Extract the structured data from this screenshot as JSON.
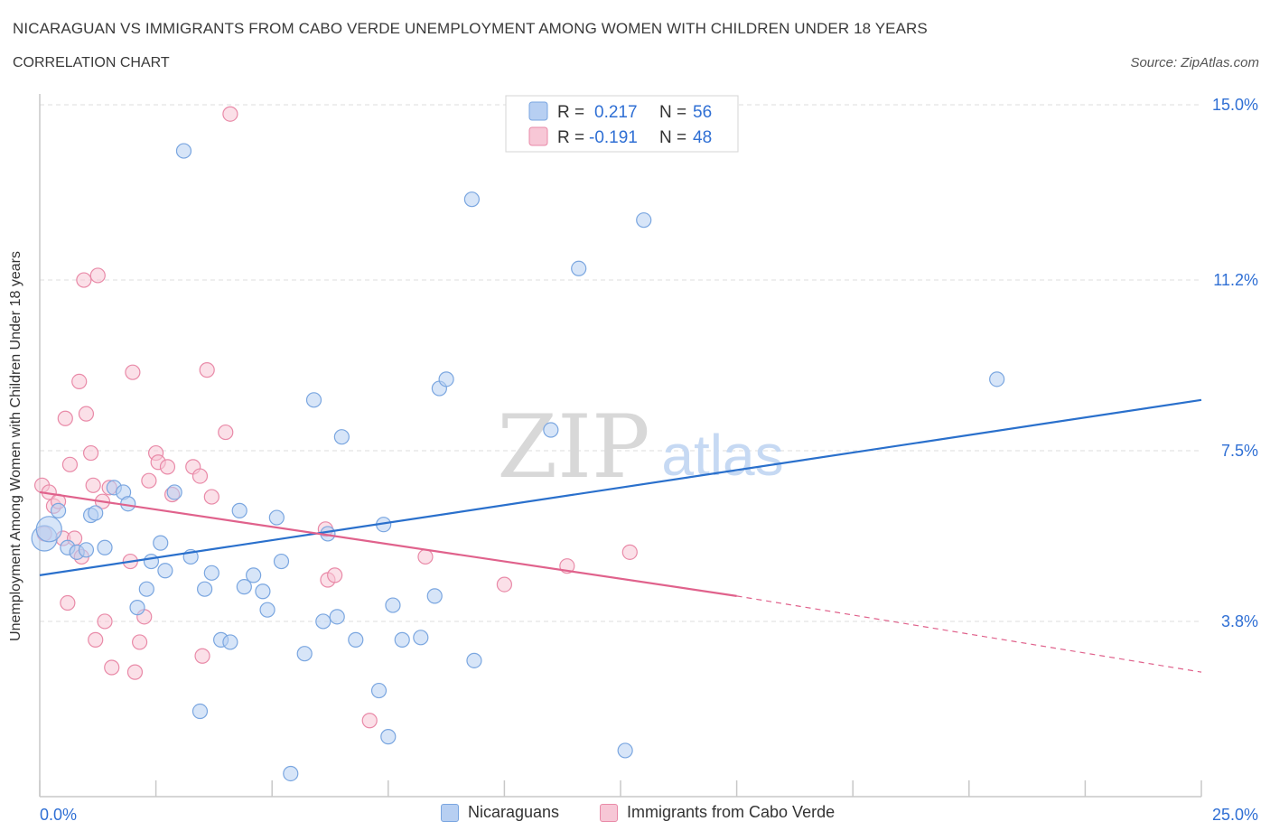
{
  "header": {
    "title": "NICARAGUAN VS IMMIGRANTS FROM CABO VERDE UNEMPLOYMENT AMONG WOMEN WITH CHILDREN UNDER 18 YEARS",
    "subtitle": "CORRELATION CHART",
    "source": "Source: ZipAtlas.com"
  },
  "colors": {
    "blue_fill": "#b7cff2",
    "blue_stroke": "#7aa6e0",
    "blue_line": "#2a70cc",
    "pink_fill": "#f7c7d6",
    "pink_stroke": "#e98aa8",
    "pink_line": "#e0628c",
    "value_text": "#2f6fd4",
    "grid": "#dddddd"
  },
  "watermark": {
    "zip": "ZIP",
    "atlas": "atlas"
  },
  "legend": {
    "rows": [
      {
        "r_label": "R =",
        "r_value": "0.217",
        "n_label": "N =",
        "n_value": "56"
      },
      {
        "r_label": "R =",
        "r_value": "-0.191",
        "n_label": "N =",
        "n_value": "48"
      }
    ]
  },
  "chart_data": {
    "type": "scatter",
    "title": "NICARAGUAN VS IMMIGRANTS FROM CABO VERDE UNEMPLOYMENT AMONG WOMEN WITH CHILDREN UNDER 18 YEARS",
    "xlabel": "",
    "ylabel": "Unemployment Among Women with Children Under 18 years",
    "xlim": [
      0,
      25
    ],
    "ylim": [
      0,
      15
    ],
    "x_tick_labels": [
      "0.0%",
      "25.0%"
    ],
    "y_ticks": [
      3.8,
      7.5,
      11.2,
      15.0
    ],
    "y_tick_labels": [
      "3.8%",
      "7.5%",
      "11.2%",
      "15.0%"
    ],
    "legend_position": "top-center",
    "series": [
      {
        "name": "Nicaraguans",
        "r": 0.217,
        "n": 56,
        "trend": {
          "x0": 0,
          "y0": 4.8,
          "x1": 25,
          "y1": 8.6
        },
        "points": [
          [
            0.1,
            5.6
          ],
          [
            0.2,
            5.8
          ],
          [
            0.4,
            6.2
          ],
          [
            0.6,
            5.4
          ],
          [
            0.8,
            5.3
          ],
          [
            1.0,
            5.35
          ],
          [
            1.1,
            6.1
          ],
          [
            1.2,
            6.15
          ],
          [
            1.4,
            5.4
          ],
          [
            1.6,
            6.7
          ],
          [
            1.8,
            6.6
          ],
          [
            1.9,
            6.35
          ],
          [
            2.1,
            4.1
          ],
          [
            2.3,
            4.5
          ],
          [
            2.4,
            5.1
          ],
          [
            2.6,
            5.5
          ],
          [
            2.7,
            4.9
          ],
          [
            2.9,
            6.6
          ],
          [
            3.1,
            14.0
          ],
          [
            3.25,
            5.2
          ],
          [
            3.55,
            4.5
          ],
          [
            3.7,
            4.85
          ],
          [
            3.45,
            1.85
          ],
          [
            3.9,
            3.4
          ],
          [
            4.1,
            3.35
          ],
          [
            4.3,
            6.2
          ],
          [
            4.4,
            4.55
          ],
          [
            4.6,
            4.8
          ],
          [
            4.8,
            4.45
          ],
          [
            4.9,
            4.05
          ],
          [
            5.1,
            6.05
          ],
          [
            5.2,
            5.1
          ],
          [
            5.4,
            0.5
          ],
          [
            5.7,
            3.1
          ],
          [
            5.9,
            8.6
          ],
          [
            6.1,
            3.8
          ],
          [
            6.2,
            5.7
          ],
          [
            6.4,
            3.9
          ],
          [
            6.5,
            7.8
          ],
          [
            6.8,
            3.4
          ],
          [
            7.4,
            5.9
          ],
          [
            7.3,
            2.3
          ],
          [
            7.5,
            1.3
          ],
          [
            7.6,
            4.15
          ],
          [
            7.8,
            3.4
          ],
          [
            8.2,
            3.45
          ],
          [
            8.5,
            4.35
          ],
          [
            8.6,
            8.85
          ],
          [
            8.75,
            9.05
          ],
          [
            9.35,
            2.95
          ],
          [
            9.3,
            12.95
          ],
          [
            11.0,
            7.95
          ],
          [
            11.6,
            11.45
          ],
          [
            12.6,
            1.0
          ],
          [
            13.0,
            12.5
          ],
          [
            20.6,
            9.05
          ]
        ]
      },
      {
        "name": "Immigrants from Cabo Verde",
        "r": -0.191,
        "n": 48,
        "trend": {
          "x0": 0,
          "y0": 6.6,
          "x1": 15.0,
          "y1": 4.35
        },
        "trend_dashed": {
          "x0": 15.0,
          "y0": 4.35,
          "x1": 25,
          "y1": 2.7
        },
        "points": [
          [
            0.05,
            6.75
          ],
          [
            0.1,
            5.7
          ],
          [
            0.2,
            6.6
          ],
          [
            0.3,
            6.3
          ],
          [
            0.4,
            6.4
          ],
          [
            0.5,
            5.6
          ],
          [
            0.55,
            8.2
          ],
          [
            0.6,
            4.2
          ],
          [
            0.65,
            7.2
          ],
          [
            0.75,
            5.6
          ],
          [
            0.8,
            5.3
          ],
          [
            0.85,
            9.0
          ],
          [
            0.9,
            5.2
          ],
          [
            0.95,
            11.2
          ],
          [
            1.0,
            8.3
          ],
          [
            1.1,
            7.45
          ],
          [
            1.15,
            6.75
          ],
          [
            1.2,
            3.4
          ],
          [
            1.25,
            11.3
          ],
          [
            1.35,
            6.4
          ],
          [
            1.4,
            3.8
          ],
          [
            1.5,
            6.7
          ],
          [
            1.55,
            2.8
          ],
          [
            1.95,
            5.1
          ],
          [
            2.0,
            9.2
          ],
          [
            2.05,
            2.7
          ],
          [
            2.15,
            3.35
          ],
          [
            2.25,
            3.9
          ],
          [
            2.35,
            6.85
          ],
          [
            2.5,
            7.45
          ],
          [
            2.55,
            7.25
          ],
          [
            2.75,
            7.15
          ],
          [
            2.85,
            6.55
          ],
          [
            3.3,
            7.15
          ],
          [
            3.45,
            6.95
          ],
          [
            3.5,
            3.05
          ],
          [
            3.6,
            9.25
          ],
          [
            3.7,
            6.5
          ],
          [
            4.0,
            7.9
          ],
          [
            4.1,
            14.8
          ],
          [
            6.15,
            5.8
          ],
          [
            6.2,
            4.7
          ],
          [
            6.35,
            4.8
          ],
          [
            7.1,
            1.65
          ],
          [
            8.3,
            5.2
          ],
          [
            10.0,
            4.6
          ],
          [
            11.35,
            5.0
          ],
          [
            12.7,
            5.3
          ]
        ]
      }
    ]
  },
  "bottom_legend": {
    "items": [
      {
        "label": "Nicaraguans"
      },
      {
        "label": "Immigrants from Cabo Verde"
      }
    ]
  }
}
